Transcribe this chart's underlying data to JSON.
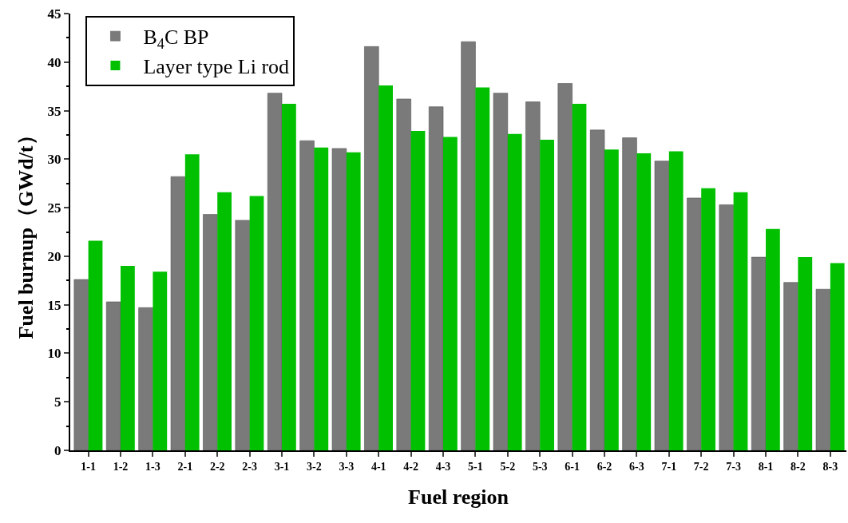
{
  "chart_data": {
    "type": "bar",
    "xlabel": "Fuel region",
    "ylabel": "Fuel burnup（GWd/t）",
    "categories": [
      "1-1",
      "1-2",
      "1-3",
      "2-1",
      "2-2",
      "2-3",
      "3-1",
      "3-2",
      "3-3",
      "4-1",
      "4-2",
      "4-3",
      "5-1",
      "5-2",
      "5-3",
      "6-1",
      "6-2",
      "6-3",
      "7-1",
      "7-2",
      "7-3",
      "8-1",
      "8-2",
      "8-3"
    ],
    "series": [
      {
        "name": "B$_{4}$C BP",
        "color": "#7a7a7a",
        "values": [
          17.6,
          15.3,
          14.7,
          28.2,
          24.3,
          23.7,
          36.8,
          31.9,
          31.1,
          41.6,
          36.2,
          35.4,
          42.1,
          36.8,
          35.9,
          37.8,
          33.0,
          32.2,
          29.8,
          26.0,
          25.3,
          19.9,
          17.3,
          16.6
        ]
      },
      {
        "name": "Layer type Li rod",
        "color": "#00c000",
        "values": [
          21.6,
          19.0,
          18.4,
          30.5,
          26.6,
          26.2,
          35.7,
          31.2,
          30.7,
          37.6,
          32.9,
          32.3,
          37.4,
          32.6,
          32.0,
          35.7,
          31.0,
          30.6,
          30.8,
          27.0,
          26.6,
          22.8,
          19.9,
          19.3
        ]
      }
    ],
    "ylim": [
      0,
      45
    ],
    "yticks": [
      0,
      5,
      10,
      15,
      20,
      25,
      30,
      35,
      40,
      45
    ],
    "grid": false,
    "legend": "top left"
  }
}
